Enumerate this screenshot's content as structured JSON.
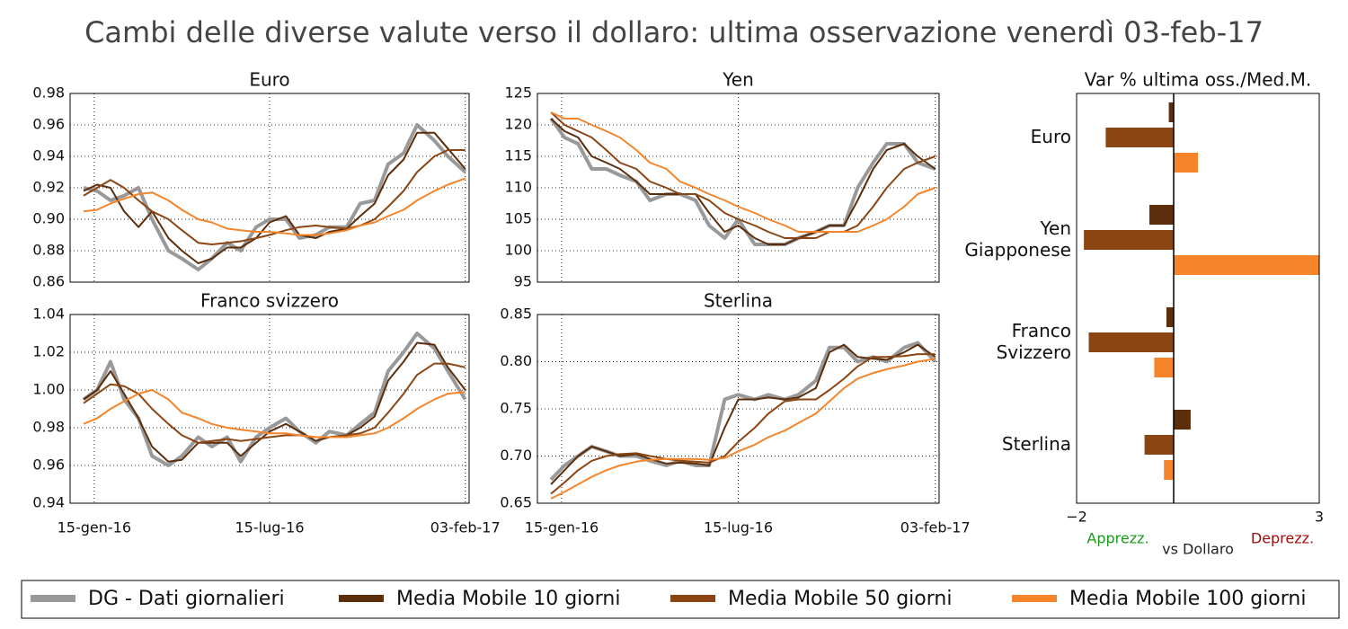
{
  "title": "Cambi delle diverse valute verso il dollaro: ultima osservazione venerdì 03-feb-17",
  "chart_data": [
    {
      "type": "line",
      "title": "Euro",
      "x": [
        "2016-01-04",
        "2016-01-18",
        "2016-02-01",
        "2016-02-15",
        "2016-03-01",
        "2016-03-15",
        "2016-04-01",
        "2016-04-15",
        "2016-05-02",
        "2016-05-16",
        "2016-06-01",
        "2016-06-15",
        "2016-07-01",
        "2016-07-15",
        "2016-08-01",
        "2016-08-15",
        "2016-09-01",
        "2016-09-15",
        "2016-10-03",
        "2016-10-17",
        "2016-11-01",
        "2016-11-15",
        "2016-12-01",
        "2016-12-15",
        "2017-01-02",
        "2017-01-16",
        "2017-02-03"
      ],
      "xlim": [
        "2015-12-21",
        "2017-02-07"
      ],
      "xticks": [
        "2016-01-15",
        "2016-07-15",
        "2017-02-03"
      ],
      "ylim": [
        0.86,
        0.98
      ],
      "yticks": [
        0.86,
        0.88,
        {
          "value": 0.9,
          "label": "0.90"
        },
        0.92,
        0.94,
        0.96,
        0.98
      ],
      "grid": true,
      "series": [
        {
          "name": "DG - Dati giornalieri",
          "color": "#999999",
          "values": [
            0.92,
            0.918,
            0.912,
            0.915,
            0.92,
            0.9,
            0.88,
            0.875,
            0.868,
            0.875,
            0.885,
            0.88,
            0.895,
            0.9,
            0.9,
            0.888,
            0.89,
            0.895,
            0.895,
            0.91,
            0.912,
            0.935,
            0.942,
            0.96,
            0.95,
            0.94,
            0.93
          ]
        },
        {
          "name": "Media Mobile 10 giorni",
          "color": "#5c2e0b",
          "values": [
            0.918,
            0.922,
            0.92,
            0.905,
            0.895,
            0.905,
            0.888,
            0.88,
            0.872,
            0.875,
            0.882,
            0.882,
            0.888,
            0.898,
            0.902,
            0.89,
            0.888,
            0.892,
            0.894,
            0.902,
            0.91,
            0.928,
            0.938,
            0.955,
            0.955,
            0.945,
            0.932
          ]
        },
        {
          "name": "Media Mobile 50 giorni",
          "color": "#8b4513",
          "values": [
            0.915,
            0.92,
            0.925,
            0.92,
            0.912,
            0.905,
            0.9,
            0.893,
            0.885,
            0.884,
            0.885,
            0.886,
            0.888,
            0.89,
            0.893,
            0.895,
            0.896,
            0.895,
            0.894,
            0.896,
            0.9,
            0.908,
            0.918,
            0.93,
            0.94,
            0.944,
            0.944
          ]
        },
        {
          "name": "Media Mobile 100 giorni",
          "color": "#f5842a",
          "values": [
            0.905,
            0.906,
            0.91,
            0.913,
            0.916,
            0.917,
            0.912,
            0.906,
            0.9,
            0.898,
            0.894,
            0.893,
            0.892,
            0.892,
            0.891,
            0.89,
            0.89,
            0.891,
            0.893,
            0.896,
            0.898,
            0.902,
            0.906,
            0.912,
            0.918,
            0.922,
            0.926
          ]
        }
      ]
    },
    {
      "type": "line",
      "title": "Yen",
      "x": [
        "2016-01-04",
        "2016-01-18",
        "2016-02-01",
        "2016-02-15",
        "2016-03-01",
        "2016-03-15",
        "2016-04-01",
        "2016-04-15",
        "2016-05-02",
        "2016-05-16",
        "2016-06-01",
        "2016-06-15",
        "2016-07-01",
        "2016-07-15",
        "2016-08-01",
        "2016-08-15",
        "2016-09-01",
        "2016-09-15",
        "2016-10-03",
        "2016-10-17",
        "2016-11-01",
        "2016-11-15",
        "2016-12-01",
        "2016-12-15",
        "2017-01-02",
        "2017-01-16",
        "2017-02-03"
      ],
      "xlim": [
        "2015-12-21",
        "2017-02-07"
      ],
      "xticks": [
        "2016-01-15",
        "2016-07-15",
        "2017-02-03"
      ],
      "ylim": [
        95,
        125
      ],
      "yticks": [
        95,
        100,
        105,
        110,
        115,
        120,
        125
      ],
      "grid": true,
      "series": [
        {
          "name": "DG - Dati giornalieri",
          "color": "#999999",
          "values": [
            121,
            118,
            117,
            113,
            113,
            112,
            111,
            108,
            109,
            109,
            108,
            104,
            102,
            105,
            101,
            101,
            101,
            102,
            103,
            104,
            104,
            110,
            114,
            117,
            117,
            114,
            113
          ]
        },
        {
          "name": "Media Mobile 10 giorni",
          "color": "#5c2e0b",
          "values": [
            121,
            119,
            118,
            115,
            114,
            113,
            111,
            109,
            109,
            109,
            109,
            106,
            103,
            104,
            102,
            101,
            101,
            102,
            103,
            104,
            104,
            108,
            113,
            116,
            117,
            115,
            113
          ]
        },
        {
          "name": "Media Mobile 50 giorni",
          "color": "#8b4513",
          "values": [
            122,
            120,
            119,
            118,
            116,
            114,
            113,
            111,
            110,
            109,
            109,
            108,
            106,
            105,
            104,
            103,
            102,
            102,
            102,
            103,
            103,
            104,
            107,
            110,
            113,
            114,
            115
          ]
        },
        {
          "name": "Media Mobile 100 giorni",
          "color": "#f5842a",
          "values": [
            122,
            121,
            121,
            120,
            119,
            118,
            116,
            114,
            113,
            111,
            110,
            109,
            108,
            107,
            106,
            105,
            104,
            103,
            103,
            103,
            103,
            103,
            104,
            105,
            107,
            109,
            110
          ]
        }
      ]
    },
    {
      "type": "line",
      "title": "Franco svizzero",
      "x": [
        "2016-01-04",
        "2016-01-18",
        "2016-02-01",
        "2016-02-15",
        "2016-03-01",
        "2016-03-15",
        "2016-04-01",
        "2016-04-15",
        "2016-05-02",
        "2016-05-16",
        "2016-06-01",
        "2016-06-15",
        "2016-07-01",
        "2016-07-15",
        "2016-08-01",
        "2016-08-15",
        "2016-09-01",
        "2016-09-15",
        "2016-10-03",
        "2016-10-17",
        "2016-11-01",
        "2016-11-15",
        "2016-12-01",
        "2016-12-15",
        "2017-01-02",
        "2017-01-16",
        "2017-02-03"
      ],
      "xlim": [
        "2015-12-21",
        "2017-02-07"
      ],
      "xticks": [
        {
          "value": "2016-01-15",
          "label": "15-gen-16"
        },
        {
          "value": "2016-07-15",
          "label": "15-lug-16"
        },
        {
          "value": "2017-02-03",
          "label": "03-feb-17"
        }
      ],
      "ylim": [
        0.94,
        1.04
      ],
      "yticks": [
        0.94,
        0.96,
        0.98,
        {
          "value": 1,
          "label": "1.00"
        },
        1.02,
        1.04
      ],
      "grid": true,
      "series": [
        {
          "name": "DG - Dati giornalieri",
          "color": "#999999",
          "values": [
            0.995,
            1.0,
            1.015,
            0.995,
            0.985,
            0.965,
            0.96,
            0.965,
            0.975,
            0.97,
            0.975,
            0.962,
            0.975,
            0.98,
            0.985,
            0.978,
            0.972,
            0.978,
            0.976,
            0.982,
            0.988,
            1.01,
            1.02,
            1.03,
            1.022,
            1.01,
            0.995
          ]
        },
        {
          "name": "Media Mobile 10 giorni",
          "color": "#5c2e0b",
          "values": [
            0.995,
            1.0,
            1.01,
            0.998,
            0.985,
            0.97,
            0.962,
            0.963,
            0.972,
            0.972,
            0.972,
            0.965,
            0.972,
            0.978,
            0.982,
            0.978,
            0.973,
            0.975,
            0.976,
            0.98,
            0.986,
            1.005,
            1.015,
            1.025,
            1.024,
            1.012,
            1.0
          ]
        },
        {
          "name": "Media Mobile 50 giorni",
          "color": "#8b4513",
          "values": [
            0.993,
            0.998,
            1.003,
            1.002,
            0.998,
            0.99,
            0.982,
            0.976,
            0.972,
            0.973,
            0.974,
            0.973,
            0.974,
            0.975,
            0.976,
            0.976,
            0.975,
            0.975,
            0.976,
            0.977,
            0.98,
            0.988,
            0.998,
            1.008,
            1.014,
            1.014,
            1.012
          ]
        },
        {
          "name": "Media Mobile 100 giorni",
          "color": "#f5842a",
          "values": [
            0.982,
            0.985,
            0.99,
            0.994,
            0.998,
            1.0,
            0.995,
            0.988,
            0.985,
            0.982,
            0.98,
            0.979,
            0.978,
            0.977,
            0.977,
            0.976,
            0.975,
            0.975,
            0.975,
            0.976,
            0.977,
            0.98,
            0.985,
            0.99,
            0.995,
            0.998,
            0.999
          ]
        }
      ]
    },
    {
      "type": "line",
      "title": "Sterlina",
      "x": [
        "2016-01-04",
        "2016-01-18",
        "2016-02-01",
        "2016-02-15",
        "2016-03-01",
        "2016-03-15",
        "2016-04-01",
        "2016-04-15",
        "2016-05-02",
        "2016-05-16",
        "2016-06-01",
        "2016-06-15",
        "2016-07-01",
        "2016-07-15",
        "2016-08-01",
        "2016-08-15",
        "2016-09-01",
        "2016-09-15",
        "2016-10-03",
        "2016-10-17",
        "2016-11-01",
        "2016-11-15",
        "2016-12-01",
        "2016-12-15",
        "2017-01-02",
        "2017-01-16",
        "2017-02-03"
      ],
      "xlim": [
        "2015-12-21",
        "2017-02-07"
      ],
      "xticks": [
        {
          "value": "2016-01-15",
          "label": "15-gen-16"
        },
        {
          "value": "2016-07-15",
          "label": "15-lug-16"
        },
        {
          "value": "2017-02-03",
          "label": "03-feb-17"
        }
      ],
      "ylim": [
        0.65,
        0.85
      ],
      "yticks": [
        0.65,
        {
          "value": 0.7,
          "label": "0.70"
        },
        0.75,
        {
          "value": 0.8,
          "label": "0.80"
        },
        0.85
      ],
      "grid": true,
      "series": [
        {
          "name": "DG - Dati giornalieri",
          "color": "#999999",
          "values": [
            0.675,
            0.69,
            0.7,
            0.71,
            0.705,
            0.7,
            0.7,
            0.695,
            0.69,
            0.695,
            0.69,
            0.69,
            0.76,
            0.765,
            0.76,
            0.765,
            0.76,
            0.765,
            0.78,
            0.815,
            0.815,
            0.8,
            0.805,
            0.8,
            0.815,
            0.82,
            0.8
          ]
        },
        {
          "name": "Media Mobile 10 giorni",
          "color": "#5c2e0b",
          "values": [
            0.67,
            0.685,
            0.7,
            0.71,
            0.705,
            0.7,
            0.702,
            0.697,
            0.692,
            0.693,
            0.692,
            0.69,
            0.73,
            0.76,
            0.76,
            0.762,
            0.76,
            0.762,
            0.772,
            0.81,
            0.818,
            0.805,
            0.803,
            0.802,
            0.81,
            0.818,
            0.805
          ]
        },
        {
          "name": "Media Mobile 50 giorni",
          "color": "#8b4513",
          "values": [
            0.66,
            0.672,
            0.685,
            0.695,
            0.7,
            0.702,
            0.703,
            0.7,
            0.697,
            0.695,
            0.694,
            0.693,
            0.7,
            0.715,
            0.73,
            0.745,
            0.758,
            0.76,
            0.76,
            0.77,
            0.782,
            0.795,
            0.805,
            0.805,
            0.806,
            0.808,
            0.808
          ]
        },
        {
          "name": "Media Mobile 100 giorni",
          "color": "#f5842a",
          "values": [
            0.655,
            0.662,
            0.67,
            0.678,
            0.685,
            0.69,
            0.694,
            0.696,
            0.697,
            0.697,
            0.697,
            0.696,
            0.698,
            0.705,
            0.712,
            0.72,
            0.727,
            0.735,
            0.745,
            0.758,
            0.772,
            0.782,
            0.788,
            0.792,
            0.796,
            0.8,
            0.803
          ]
        }
      ]
    },
    {
      "type": "bar",
      "title": "Var % ultima oss./Med.M.",
      "categories": [
        "Euro",
        "Yen Giapponese",
        "Franco Svizzero",
        "Sterlina"
      ],
      "xlim": [
        -2,
        3
      ],
      "xticks": [
        {
          "value": -2,
          "label": "−2"
        },
        3
      ],
      "series": [
        {
          "name": "Media Mobile 10 giorni",
          "color": "#5c2e0b",
          "values": [
            -0.1,
            -0.5,
            -0.15,
            0.35
          ]
        },
        {
          "name": "Media Mobile 50 giorni",
          "color": "#8b4513",
          "values": [
            -1.4,
            -1.85,
            -1.75,
            -0.6
          ]
        },
        {
          "name": "Media Mobile 100 giorni",
          "color": "#f5842a",
          "values": [
            0.5,
            3.0,
            -0.4,
            -0.2
          ]
        }
      ],
      "annotations": [
        {
          "text": "Apprezz.",
          "color": "#1a9a1a"
        },
        {
          "text": "vs Dollaro",
          "color": "#222222"
        },
        {
          "text": "Deprezz.",
          "color": "#a01010"
        }
      ]
    }
  ]
}
